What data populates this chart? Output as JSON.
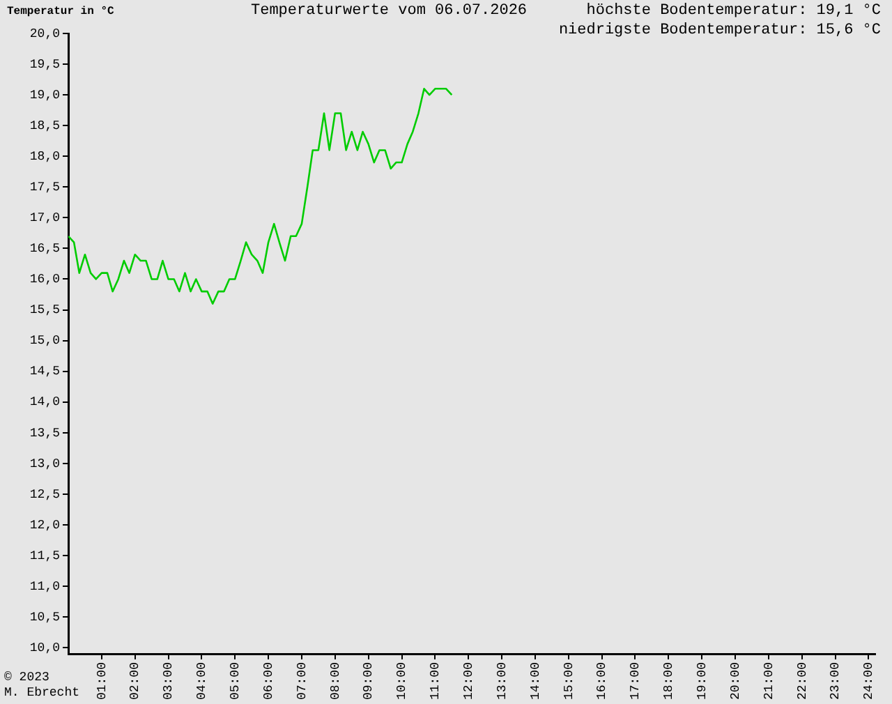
{
  "chart_data": {
    "type": "line",
    "title": "Temperaturwerte vom 06.07.2026",
    "ylabel": "Temperatur in °C",
    "annotations": [
      "höchste Bodentemperatur: 19,1 °C",
      "niedrigste Bodentemperatur: 15,6 °C",
      "© 2023",
      "M. Ebrecht"
    ],
    "x": [
      0,
      0.17,
      0.33,
      0.5,
      0.67,
      0.83,
      1,
      1.17,
      1.33,
      1.5,
      1.67,
      1.83,
      2,
      2.17,
      2.33,
      2.5,
      2.67,
      2.83,
      3,
      3.17,
      3.33,
      3.5,
      3.67,
      3.83,
      4,
      4.17,
      4.33,
      4.5,
      4.67,
      4.83,
      5,
      5.17,
      5.33,
      5.5,
      5.67,
      5.83,
      6,
      6.17,
      6.33,
      6.5,
      6.67,
      6.83,
      7,
      7.17,
      7.33,
      7.5,
      7.67,
      7.83,
      8,
      8.17,
      8.33,
      8.5,
      8.67,
      8.83,
      9,
      9.17,
      9.33,
      9.5,
      9.67,
      9.83,
      10,
      10.17,
      10.33,
      10.5,
      10.67,
      10.83,
      11,
      11.17,
      11.33,
      11.5
    ],
    "series": [
      {
        "color": "#00cc00",
        "values": [
          16.7,
          16.6,
          16.1,
          16.4,
          16.1,
          16.0,
          16.1,
          16.1,
          15.8,
          16.0,
          16.3,
          16.1,
          16.4,
          16.3,
          16.3,
          16.0,
          16.0,
          16.3,
          16.0,
          16.0,
          15.8,
          16.1,
          15.8,
          16.0,
          15.8,
          15.8,
          15.6,
          15.8,
          15.8,
          16.0,
          16.0,
          16.3,
          16.6,
          16.4,
          16.3,
          16.1,
          16.6,
          16.9,
          16.6,
          16.3,
          16.7,
          16.7,
          16.9,
          17.5,
          18.1,
          18.1,
          18.7,
          18.1,
          18.7,
          18.7,
          18.1,
          18.4,
          18.1,
          18.4,
          18.2,
          17.9,
          18.1,
          18.1,
          17.8,
          17.9,
          17.9,
          18.2,
          18.4,
          18.7,
          19.1,
          19.0,
          19.1,
          19.1,
          19.1,
          19.0
        ]
      }
    ],
    "xlim": [
      0,
      24.2
    ],
    "ylim": [
      9.9,
      20
    ],
    "xticks": [
      {
        "value": 1,
        "label": "01:00"
      },
      {
        "value": 2,
        "label": "02:00"
      },
      {
        "value": 3,
        "label": "03:00"
      },
      {
        "value": 4,
        "label": "04:00"
      },
      {
        "value": 5,
        "label": "05:00"
      },
      {
        "value": 6,
        "label": "06:00"
      },
      {
        "value": 7,
        "label": "07:00"
      },
      {
        "value": 8,
        "label": "08:00"
      },
      {
        "value": 9,
        "label": "09:00"
      },
      {
        "value": 10,
        "label": "10:00"
      },
      {
        "value": 11,
        "label": "11:00"
      },
      {
        "value": 12,
        "label": "12:00"
      },
      {
        "value": 13,
        "label": "13:00"
      },
      {
        "value": 14,
        "label": "14:00"
      },
      {
        "value": 15,
        "label": "15:00"
      },
      {
        "value": 16,
        "label": "16:00"
      },
      {
        "value": 17,
        "label": "17:00"
      },
      {
        "value": 18,
        "label": "18:00"
      },
      {
        "value": 19,
        "label": "19:00"
      },
      {
        "value": 20,
        "label": "20:00"
      },
      {
        "value": 21,
        "label": "21:00"
      },
      {
        "value": 22,
        "label": "22:00"
      },
      {
        "value": 23,
        "label": "23:00"
      },
      {
        "value": 24,
        "label": "24:00"
      }
    ],
    "yticks": [
      {
        "value": 10,
        "label": "10,0"
      },
      {
        "value": 10.5,
        "label": "10,5"
      },
      {
        "value": 11,
        "label": "11,0"
      },
      {
        "value": 11.5,
        "label": "11,5"
      },
      {
        "value": 12,
        "label": "12,0"
      },
      {
        "value": 12.5,
        "label": "12,5"
      },
      {
        "value": 13,
        "label": "13,0"
      },
      {
        "value": 13.5,
        "label": "13,5"
      },
      {
        "value": 14,
        "label": "14,0"
      },
      {
        "value": 14.5,
        "label": "14,5"
      },
      {
        "value": 15,
        "label": "15,0"
      },
      {
        "value": 15.5,
        "label": "15,5"
      },
      {
        "value": 16,
        "label": "16,0"
      },
      {
        "value": 16.5,
        "label": "16,5"
      },
      {
        "value": 17,
        "label": "17,0"
      },
      {
        "value": 17.5,
        "label": "17,5"
      },
      {
        "value": 18,
        "label": "18,0"
      },
      {
        "value": 18.5,
        "label": "18,5"
      },
      {
        "value": 19,
        "label": "19,0"
      },
      {
        "value": 19.5,
        "label": "19,5"
      },
      {
        "value": 20,
        "label": "20,0"
      }
    ],
    "grid": false,
    "legend": false,
    "marker": "none",
    "line_style": "solid"
  }
}
